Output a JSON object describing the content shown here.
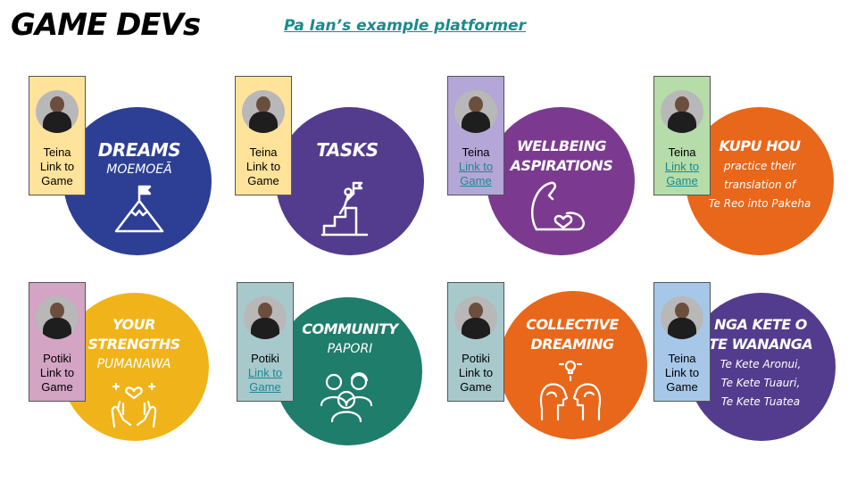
{
  "page": {
    "title": "GAME DEVs",
    "subtitle_link": "Pa Ian’s example platformer"
  },
  "colors": {
    "blue": "#2d3f94",
    "purple": "#533c8d",
    "violet": "#7b3a8f",
    "orange": "#e8671a",
    "yellow": "#f0b41a",
    "green": "#1f7d6b",
    "link": "#1a8a8f"
  },
  "tiles": [
    {
      "heading": "DREAMS",
      "sub": "MOEMOEĀ",
      "icon": "mountain-flag-icon",
      "card": {
        "role": "Teina",
        "link_line1": "Link to",
        "link_line2": "Game",
        "bg": "#ffe39a",
        "linked": false
      }
    },
    {
      "heading": "TASKS",
      "sub": "",
      "icon": "climbing-steps-icon",
      "card": {
        "role": "Teina",
        "link_line1": "Link to",
        "link_line2": "Game",
        "bg": "#ffe39a",
        "linked": false
      }
    },
    {
      "heading_line1": "WELLBEING",
      "heading_line2": "ASPIRATIONS",
      "icon": "flexed-arm-heart-icon",
      "card": {
        "role": "Teina",
        "link_line1": "Link to",
        "link_line2": "Game",
        "bg": "#b4a6d6",
        "linked": true
      }
    },
    {
      "heading": "KUPU HOU",
      "sub_line1": "practice their",
      "sub_line2": "translation of",
      "sub_line3": "Te Reo into Pakeha",
      "card": {
        "role": "Teina",
        "link_line1": "Link to",
        "link_line2": "Game",
        "bg": "#b6dca9",
        "linked": true
      }
    },
    {
      "heading_line1": "YOUR",
      "heading_line2": "STRENGTHS",
      "sub": "PUMANAWA",
      "icon": "hands-heart-icon",
      "card": {
        "role": "Potiki",
        "link_line1": "Link to",
        "link_line2": "Game",
        "bg": "#d3a4c3",
        "linked": false
      }
    },
    {
      "heading": "COMMUNITY",
      "sub": "PAPORI",
      "icon": "people-group-icon",
      "card": {
        "role": "Potiki",
        "link_line1": "Link to",
        "link_line2": "Game",
        "bg": "#a7c9cc",
        "linked": true
      }
    },
    {
      "heading_line1": "COLLECTIVE",
      "heading_line2": "DREAMING",
      "icon": "two-heads-idea-icon",
      "card": {
        "role": "Potiki",
        "link_line1": "Link to",
        "link_line2": "Game",
        "bg": "#a7c9cc",
        "linked": false
      }
    },
    {
      "heading_line1": "NGA KETE O",
      "heading_line2": "TE WANANGA",
      "sub_line1": "Te Kete Aronui,",
      "sub_line2": "Te Kete Tuauri,",
      "sub_line3": "Te Kete Tuatea",
      "card": {
        "role": "Teina",
        "link_line1": "Link to",
        "link_line2": "Game",
        "bg": "#a6c7e8",
        "linked": false
      }
    }
  ]
}
